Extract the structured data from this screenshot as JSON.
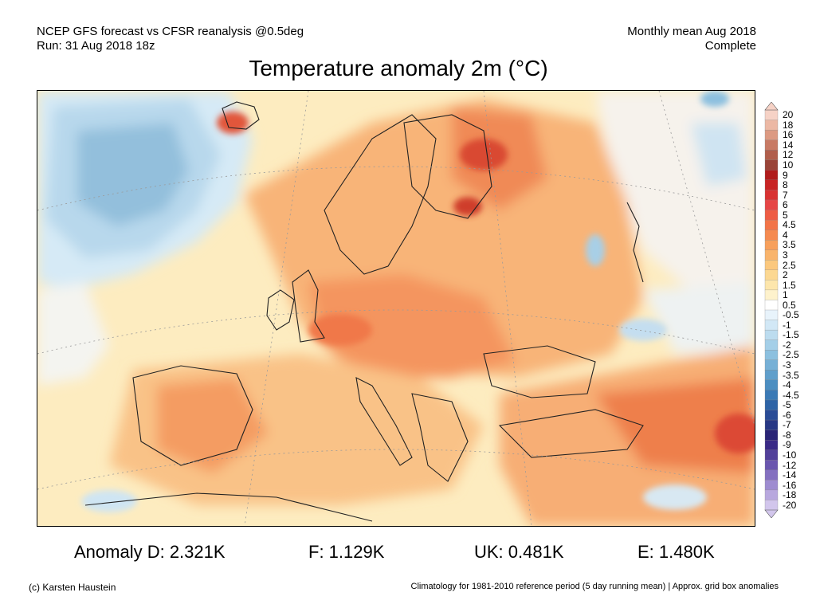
{
  "header": {
    "line1_left": "NCEP GFS forecast vs CFSR reanalysis @0.5deg",
    "line2_left": "Run: 31 Aug 2018 18z",
    "line1_right": "Monthly mean Aug 2018",
    "line2_right": "Complete"
  },
  "title": "Temperature anomaly 2m (°C)",
  "legend": {
    "labels": [
      "20",
      "18",
      "16",
      "14",
      "12",
      "10",
      "9",
      "8",
      "7",
      "6",
      "5",
      "4.5",
      "4",
      "3.5",
      "3",
      "2.5",
      "2",
      "1.5",
      "1",
      "0.5",
      "-0.5",
      "-1",
      "-1.5",
      "-2",
      "-2.5",
      "-3",
      "-3.5",
      "-4",
      "-4.5",
      "-5",
      "-6",
      "-7",
      "-8",
      "-9",
      "-10",
      "-12",
      "-14",
      "-16",
      "-18",
      "-20"
    ],
    "colors": [
      "#f6d2c6",
      "#ecb8a4",
      "#dc9a82",
      "#c87a64",
      "#b05e4c",
      "#9a4438",
      "#b01c1c",
      "#c82424",
      "#d83232",
      "#e64646",
      "#ee5c44",
      "#f27448",
      "#f58a50",
      "#f7a05c",
      "#f9b46c",
      "#fbc87e",
      "#fcd892",
      "#fde6ac",
      "#fef2cc",
      "#ffffff",
      "#e8f3fb",
      "#d2e8f6",
      "#bcdcef",
      "#a4cfe8",
      "#8cc0df",
      "#76b0d6",
      "#609fcb",
      "#4c8ec1",
      "#3b7ab5",
      "#2e64a6",
      "#2a4c96",
      "#283884",
      "#2a2476",
      "#3a2a86",
      "#52409a",
      "#6a56ae",
      "#8470c0",
      "#9e8cd0",
      "#b8a8de",
      "#d2c6ec"
    ]
  },
  "stats": {
    "d": "Anomaly D: 2.321K",
    "f": "F: 1.129K",
    "uk": "UK: 0.481K",
    "e": "E: 1.480K"
  },
  "footer": {
    "left": "(c) Karsten Haustein",
    "right": "Climatology for 1981-2010 reference period (5 day running mean) | Approx. grid box anomalies"
  }
}
